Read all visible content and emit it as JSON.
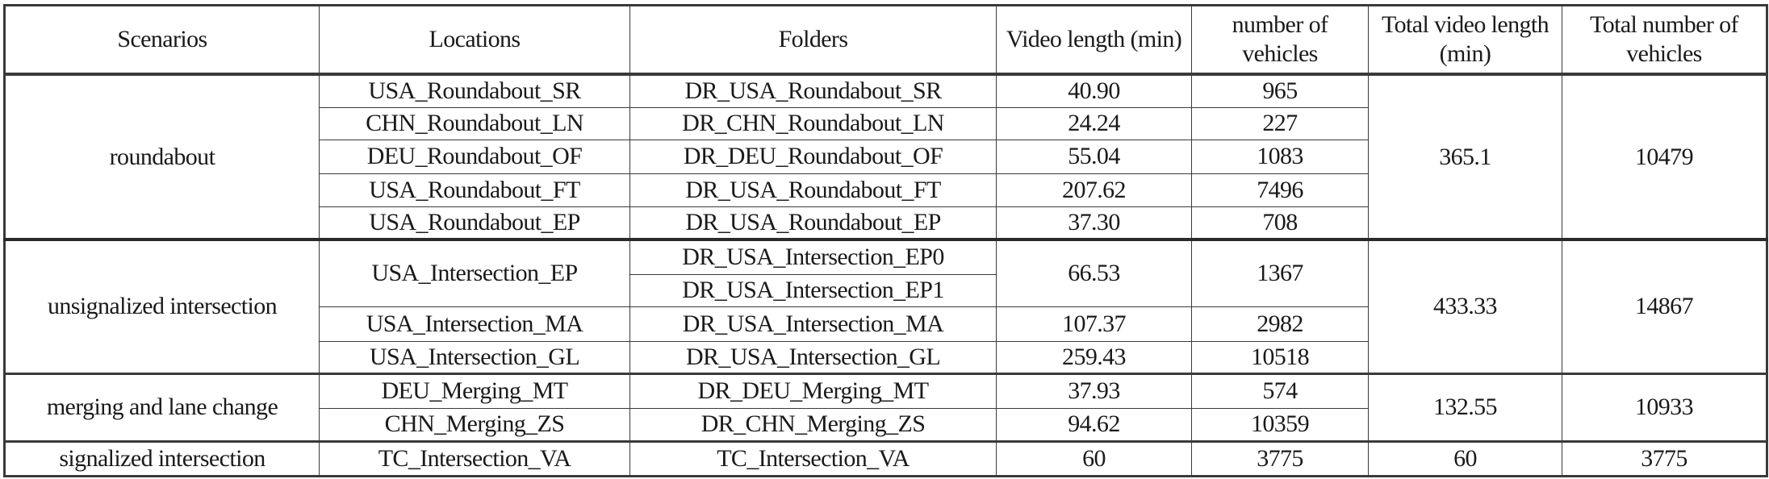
{
  "header": [
    "Scenarios",
    "Locations",
    "Folders",
    "Video length (min)",
    "number of vehicles",
    "Total video length (min)",
    "Total number of vehicles"
  ],
  "groups": [
    {
      "scenario": "roundabout",
      "total_video_length": "365.1",
      "total_vehicles": "10479",
      "locations": [
        {
          "location": "USA_Roundabout_SR",
          "folders": [
            "DR_USA_Roundabout_SR"
          ],
          "video_length": "40.90",
          "vehicles": "965"
        },
        {
          "location": "CHN_Roundabout_LN",
          "folders": [
            "DR_CHN_Roundabout_LN"
          ],
          "video_length": "24.24",
          "vehicles": "227"
        },
        {
          "location": "DEU_Roundabout_OF",
          "folders": [
            "DR_DEU_Roundabout_OF"
          ],
          "video_length": "55.04",
          "vehicles": "1083"
        },
        {
          "location": "USA_Roundabout_FT",
          "folders": [
            "DR_USA_Roundabout_FT"
          ],
          "video_length": "207.62",
          "vehicles": "7496"
        },
        {
          "location": "USA_Roundabout_EP",
          "folders": [
            "DR_USA_Roundabout_EP"
          ],
          "video_length": "37.30",
          "vehicles": "708"
        }
      ]
    },
    {
      "scenario": "unsignalized intersection",
      "total_video_length": "433.33",
      "total_vehicles": "14867",
      "locations": [
        {
          "location": "USA_Intersection_EP",
          "folders": [
            "DR_USA_Intersection_EP0",
            "DR_USA_Intersection_EP1"
          ],
          "video_length": "66.53",
          "vehicles": "1367"
        },
        {
          "location": "USA_Intersection_MA",
          "folders": [
            "DR_USA_Intersection_MA"
          ],
          "video_length": "107.37",
          "vehicles": "2982"
        },
        {
          "location": "USA_Intersection_GL",
          "folders": [
            "DR_USA_Intersection_GL"
          ],
          "video_length": "259.43",
          "vehicles": "10518"
        }
      ]
    },
    {
      "scenario": "merging and lane change",
      "total_video_length": "132.55",
      "total_vehicles": "10933",
      "locations": [
        {
          "location": "DEU_Merging_MT",
          "folders": [
            "DR_DEU_Merging_MT"
          ],
          "video_length": "37.93",
          "vehicles": "574"
        },
        {
          "location": "CHN_Merging_ZS",
          "folders": [
            "DR_CHN_Merging_ZS"
          ],
          "video_length": "94.62",
          "vehicles": "10359"
        }
      ]
    },
    {
      "scenario": "signalized intersection",
      "total_video_length": "60",
      "total_vehicles": "3775",
      "locations": [
        {
          "location": "TC_Intersection_VA",
          "folders": [
            "TC_Intersection_VA"
          ],
          "video_length": "60",
          "vehicles": "3775"
        }
      ]
    }
  ]
}
